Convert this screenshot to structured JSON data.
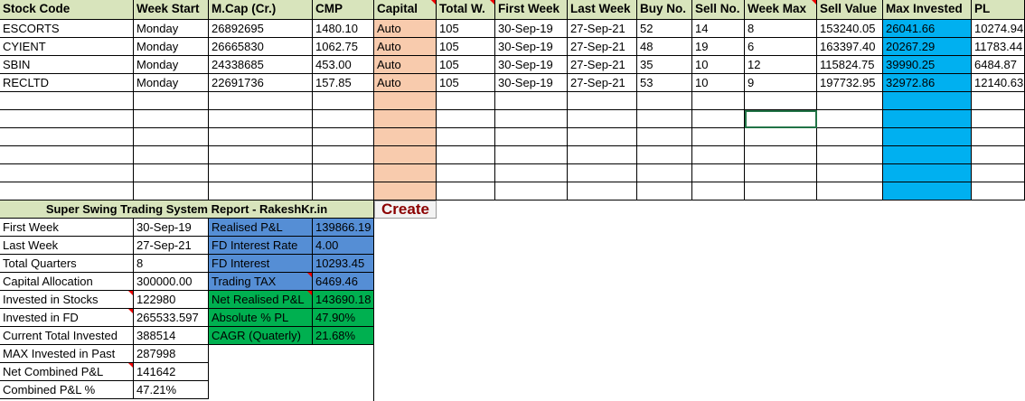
{
  "sheet": {
    "headers": [
      "Stock Code",
      "Week Start",
      "M.Cap (Cr.)",
      "CMP",
      "Capital",
      "Total W.",
      "First Week",
      "Last Week",
      "Buy No.",
      "Sell No.",
      "Week Max",
      "Sell Value",
      "Max Invested",
      "PL"
    ],
    "rows": [
      [
        "ESCORTS",
        "Monday",
        "26892695",
        "1480.10",
        "Auto",
        "105",
        "30-Sep-19",
        "27-Sep-21",
        "52",
        "14",
        "8",
        "153240.05",
        "26041.66",
        "10274.94"
      ],
      [
        "CYIENT",
        "Monday",
        "26665830",
        "1062.75",
        "Auto",
        "105",
        "30-Sep-19",
        "27-Sep-21",
        "48",
        "19",
        "6",
        "163397.40",
        "20267.29",
        "11783.44"
      ],
      [
        "SBIN",
        "Monday",
        "24338685",
        "453.00",
        "Auto",
        "105",
        "30-Sep-19",
        "27-Sep-21",
        "35",
        "10",
        "12",
        "115824.75",
        "39990.25",
        "6484.87"
      ],
      [
        "RECLTD",
        "Monday",
        "22691736",
        "157.85",
        "Auto",
        "105",
        "30-Sep-19",
        "27-Sep-21",
        "53",
        "10",
        "9",
        "197732.95",
        "32972.86",
        "12140.63"
      ]
    ],
    "empty_rows": 6
  },
  "report": {
    "title": "Super Swing Trading System Report - RakeshKr.in",
    "create_label": "Create",
    "left": [
      [
        "First Week",
        "30-Sep-19"
      ],
      [
        "Last Week",
        "27-Sep-21"
      ],
      [
        "Total Quarters",
        "8"
      ],
      [
        "Capital Allocation",
        "300000.00"
      ],
      [
        "Invested in Stocks",
        "122980"
      ],
      [
        "Invested in FD",
        "265533.597"
      ],
      [
        "Current Total Invested",
        "388514"
      ],
      [
        "MAX Invested in Past",
        "287998"
      ],
      [
        "Net Combined P&L",
        "141642"
      ],
      [
        "Combined P&L %",
        "47.21%"
      ]
    ],
    "right": [
      [
        "Realised P&L",
        "139866.19"
      ],
      [
        "FD Interest Rate",
        "4.00"
      ],
      [
        "FD Interest",
        "10293.45"
      ],
      [
        "Trading TAX",
        "6469.46"
      ],
      [
        "Net Realised P&L",
        "143690.18"
      ],
      [
        "Absolute % PL",
        "47.90%"
      ],
      [
        "CAGR (Quaterly)",
        "21.68%"
      ]
    ]
  },
  "colors": {
    "header": "#d8e4bc",
    "capital": "#f8cbad",
    "max_invested": "#00b0f0",
    "blue": "#558ed5",
    "green": "#00b050"
  }
}
